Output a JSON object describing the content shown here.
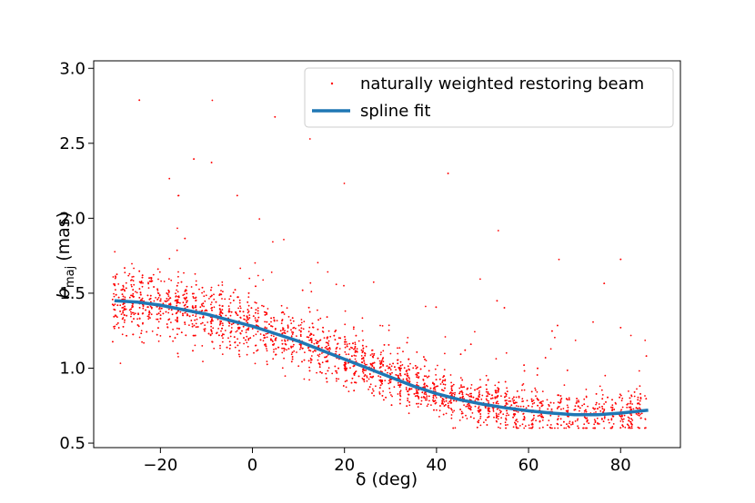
{
  "chart_data": {
    "type": "scatter",
    "xlabel": "δ (deg)",
    "ylabel_main": "b",
    "ylabel_sub": "maj",
    "ylabel_unit": "(mas)",
    "xlim": [
      -34.5,
      93
    ],
    "ylim": [
      0.47,
      3.05
    ],
    "xticks": [
      -20,
      0,
      20,
      40,
      60,
      80
    ],
    "xtick_labels": [
      "−20",
      "0",
      "20",
      "40",
      "60",
      "80"
    ],
    "yticks": [
      0.5,
      1.0,
      1.5,
      2.0,
      2.5,
      3.0
    ],
    "ytick_labels": [
      "0.5",
      "1.0",
      "1.5",
      "2.0",
      "2.5",
      "3.0"
    ],
    "legend_position": "top-right",
    "series": [
      {
        "name": "naturally weighted restoring beam",
        "kind": "scatter",
        "color": "#ff0000",
        "x_range": [
          -30,
          86
        ],
        "density_peak_near": 0
      },
      {
        "name": "spline fit",
        "kind": "line",
        "color": "#1f77b4",
        "x": [
          -30,
          -25,
          -20,
          -15,
          -10,
          -5,
          0,
          5,
          10,
          15,
          20,
          25,
          30,
          35,
          40,
          45,
          50,
          55,
          60,
          65,
          70,
          75,
          80,
          86
        ],
        "y": [
          1.45,
          1.44,
          1.42,
          1.39,
          1.36,
          1.32,
          1.28,
          1.23,
          1.18,
          1.12,
          1.06,
          1.0,
          0.94,
          0.88,
          0.83,
          0.79,
          0.76,
          0.735,
          0.715,
          0.7,
          0.69,
          0.69,
          0.7,
          0.72
        ]
      }
    ]
  }
}
